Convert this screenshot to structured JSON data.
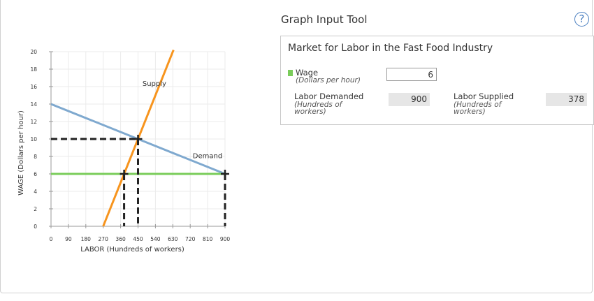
{
  "tool": {
    "title": "Graph Input Tool",
    "help_symbol": "?"
  },
  "panel": {
    "title": "Market for Labor in the Fast Food Industry",
    "wage_label": "Wage",
    "wage_sub": "(Dollars per hour)",
    "wage_value": "6",
    "demanded_label": "Labor Demanded",
    "demanded_sub_1": "(Hundreds of",
    "demanded_sub_2": "workers)",
    "demanded_value": "900",
    "supplied_label": "Labor Supplied",
    "supplied_sub_1": "(Hundreds of",
    "supplied_sub_2": "workers)",
    "supplied_value": "378"
  },
  "colors": {
    "supply": "#f7941d",
    "demand": "#7fa9cf",
    "wage_line": "#7acc5a",
    "help": "#4a7fc0"
  },
  "chart_data": {
    "type": "line",
    "xlabel": "LABOR (Hundreds of workers)",
    "ylabel": "WAGE (Dollars per hour)",
    "xlim": [
      0,
      900
    ],
    "ylim": [
      0,
      20
    ],
    "xticks": [
      0,
      90,
      180,
      270,
      360,
      450,
      540,
      630,
      720,
      810,
      900
    ],
    "yticks": [
      0,
      2,
      4,
      6,
      8,
      10,
      12,
      14,
      16,
      18,
      20
    ],
    "grid": true,
    "series": [
      {
        "name": "Supply",
        "x": [
          270,
          630
        ],
        "y": [
          0,
          20
        ]
      },
      {
        "name": "Demand",
        "x": [
          0,
          900
        ],
        "y": [
          14,
          6
        ]
      }
    ],
    "wage_line": {
      "y": 6,
      "x": [
        0,
        900
      ]
    },
    "equilibrium": {
      "x": 450,
      "y": 10
    },
    "markers": [
      {
        "x": 378,
        "y": 6
      },
      {
        "x": 450,
        "y": 10
      },
      {
        "x": 900,
        "y": 6
      }
    ]
  }
}
